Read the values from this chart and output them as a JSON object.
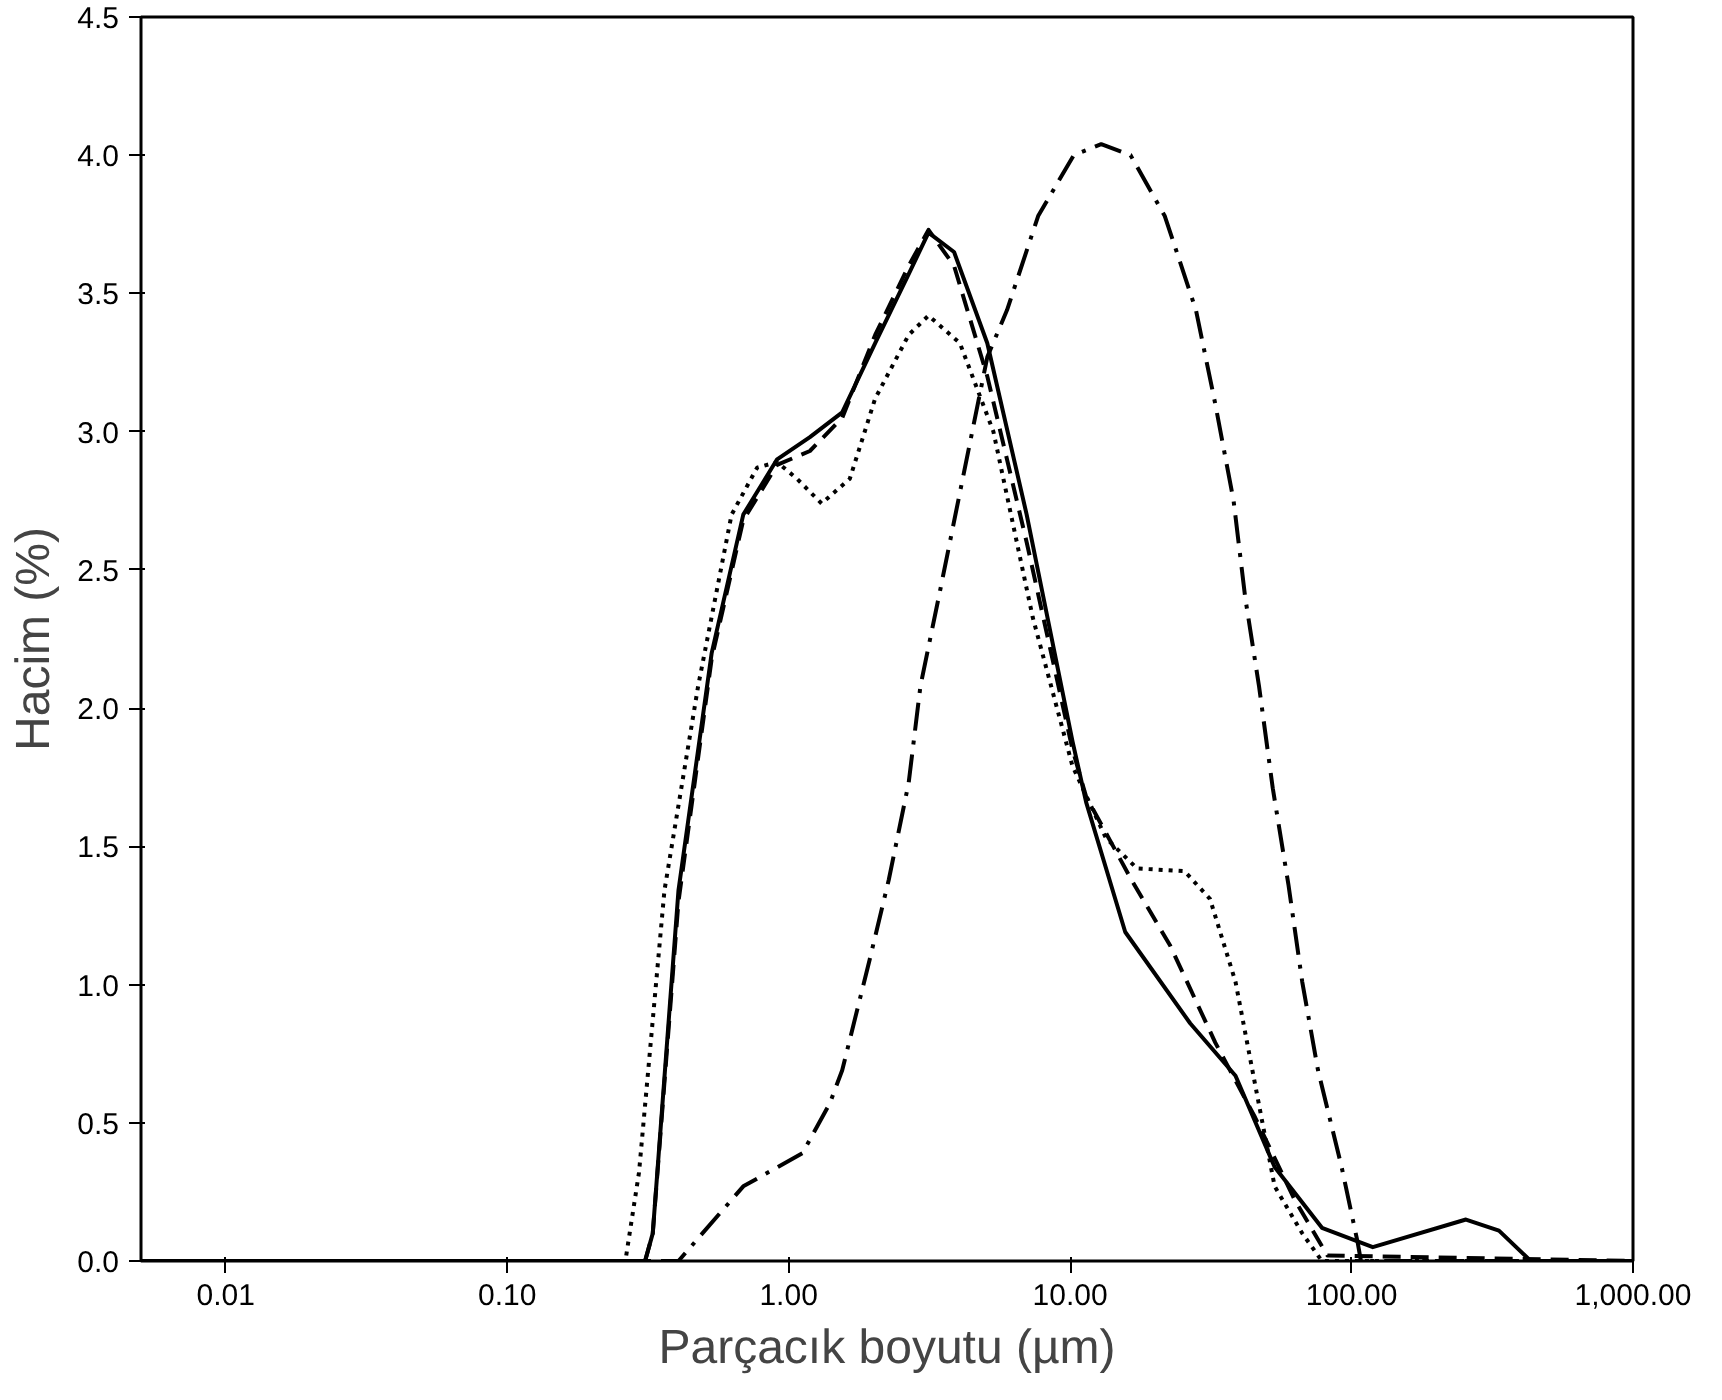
{
  "chart_data": {
    "type": "line",
    "xlabel": "Parçacık boyutu (µm)",
    "ylabel": "Hacim (%)",
    "log": "x",
    "xlim": [
      0.005,
      1000
    ],
    "ylim": [
      0,
      4.5
    ],
    "xticks": [
      {
        "value": 0.01,
        "label": "0.01"
      },
      {
        "value": 0.1,
        "label": "0.10"
      },
      {
        "value": 1,
        "label": "1.00"
      },
      {
        "value": 10,
        "label": "10.00"
      },
      {
        "value": 100,
        "label": "100.00"
      },
      {
        "value": 1000,
        "label": "1,000.00"
      }
    ],
    "yticks": [
      {
        "value": 0,
        "label": "0.0"
      },
      {
        "value": 0.5,
        "label": "0.5"
      },
      {
        "value": 1,
        "label": "1.0"
      },
      {
        "value": 1.5,
        "label": "1.5"
      },
      {
        "value": 2,
        "label": "2.0"
      },
      {
        "value": 2.5,
        "label": "2.5"
      },
      {
        "value": 3,
        "label": "3.0"
      },
      {
        "value": 3.5,
        "label": "3.5"
      },
      {
        "value": 4,
        "label": "4.0"
      },
      {
        "value": 4.5,
        "label": "4.5"
      }
    ],
    "grid": false,
    "marker": "none",
    "series": [
      {
        "color": "#000000",
        "line_style": "solid",
        "x": [
          0.005,
          0.309,
          0.329,
          0.406,
          0.533,
          0.69,
          0.91,
          1.19,
          1.55,
          2.03,
          2.67,
          3.14,
          3.87,
          5.08,
          7.01,
          10.2,
          11.4,
          15.7,
          26.7,
          38.7,
          53.3,
          78.5,
          119,
          255,
          334,
          433,
          1000
        ],
        "values": [
          0,
          0,
          0.1,
          1.34,
          2.2,
          2.7,
          2.9,
          2.98,
          3.07,
          3.32,
          3.57,
          3.72,
          3.65,
          3.32,
          2.7,
          1.88,
          1.66,
          1.19,
          0.86,
          0.67,
          0.34,
          0.12,
          0.05,
          0.15,
          0.11,
          0,
          0
        ]
      },
      {
        "color": "#000000",
        "line_style": "dashed",
        "x": [
          0.005,
          0.309,
          0.329,
          0.406,
          0.533,
          0.69,
          0.91,
          1.19,
          1.55,
          2.03,
          2.67,
          3.14,
          3.87,
          5.08,
          7.01,
          10.2,
          11.4,
          16.5,
          22.7,
          32.8,
          45.4,
          62.9,
          82.1,
          1000
        ],
        "values": [
          0,
          0,
          0.1,
          1.3,
          2.18,
          2.68,
          2.88,
          2.93,
          3.05,
          3.35,
          3.6,
          3.73,
          3.6,
          3.2,
          2.6,
          1.85,
          1.68,
          1.38,
          1.14,
          0.79,
          0.52,
          0.22,
          0.02,
          0
        ]
      },
      {
        "color": "#000000",
        "line_style": "dotted",
        "x": [
          0.005,
          0.263,
          0.294,
          0.362,
          0.477,
          0.627,
          0.773,
          0.91,
          1.07,
          1.31,
          1.65,
          2.03,
          2.67,
          3.14,
          4.06,
          5.34,
          7.36,
          10.2,
          13.4,
          17.3,
          25.5,
          31.4,
          38.7,
          45.4,
          53.3,
          66.8,
          78.5,
          1000
        ],
        "values": [
          0,
          0,
          0.32,
          1.34,
          2.08,
          2.7,
          2.87,
          2.89,
          2.83,
          2.74,
          2.83,
          3.12,
          3.35,
          3.42,
          3.32,
          3.0,
          2.33,
          1.79,
          1.53,
          1.42,
          1.41,
          1.31,
          1.01,
          0.64,
          0.27,
          0.1,
          0,
          0
        ]
      },
      {
        "color": "#000000",
        "line_style": "dashdot",
        "x": [
          0.005,
          0.406,
          0.69,
          1.12,
          1.4,
          1.55,
          1.94,
          2.27,
          2.67,
          2.94,
          3.46,
          4.06,
          5.08,
          5.97,
          7.7,
          10.3,
          12.9,
          16.4,
          21.7,
          28.0,
          32.8,
          38.1,
          41.9,
          46.9,
          52.5,
          59.7,
          66.8,
          76.0,
          92.2,
          105,
          108,
          1000
        ],
        "values": [
          0,
          0,
          0.27,
          0.39,
          0.57,
          0.69,
          1.09,
          1.38,
          1.73,
          2.08,
          2.43,
          2.78,
          3.27,
          3.44,
          3.78,
          4.0,
          4.04,
          4.0,
          3.78,
          3.44,
          3.1,
          2.75,
          2.4,
          2.08,
          1.71,
          1.36,
          1.01,
          0.69,
          0.34,
          0.07,
          0,
          0
        ]
      }
    ]
  }
}
